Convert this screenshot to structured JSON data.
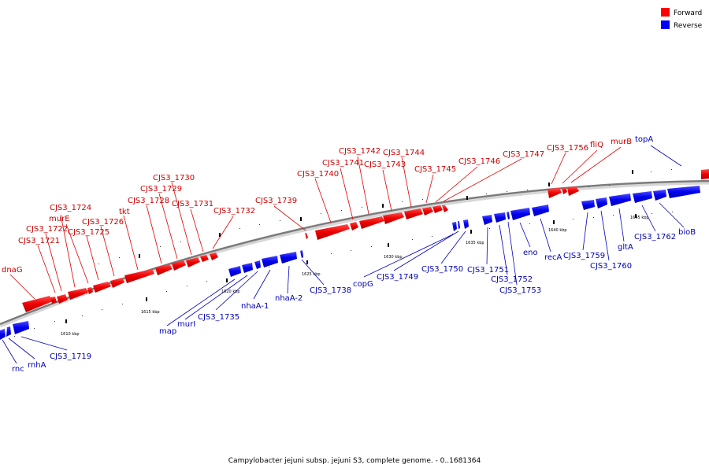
{
  "caption": "Campylobacter jejuni subsp. jejuni S3, complete genome. - 0..1681364",
  "legend": [
    {
      "label": "Forward",
      "color": "#ff0000"
    },
    {
      "label": "Reverse",
      "color": "#0000ff"
    }
  ],
  "colors": {
    "forward": "#ff0000",
    "reverse": "#0000ff",
    "forward_label": "#cc0000",
    "reverse_label": "#0000b3"
  },
  "scale_labels": [
    "1610 kbp",
    "1615 kbp",
    "1620 kbp",
    "1625 kbp",
    "1630 kbp",
    "1635 kbp",
    "1640 kbp",
    "1645 kbp"
  ],
  "forward_genes": [
    "dnaG",
    "CJS3_1721",
    "CJS3_1722",
    "CJS3_1724",
    "murE",
    "CJS3_1725",
    "CJS3_1726",
    "tkt",
    "CJS3_1728",
    "CJS3_1729",
    "CJS3_1730",
    "CJS3_1731",
    "CJS3_1732",
    "CJS3_1739",
    "CJS3_1740",
    "CJS3_1741",
    "CJS3_1742",
    "CJS3_1743",
    "CJS3_1744",
    "CJS3_1745",
    "CJS3_1746",
    "CJS3_1747",
    "CJS3_1756",
    "fliQ",
    "murB"
  ],
  "reverse_genes": [
    "rnc",
    "rnhA",
    "CJS3_1719",
    "map",
    "murI",
    "CJS3_1735",
    "nhaA-1",
    "nhaA-2",
    "CJS3_1738",
    "copG",
    "CJS3_1749",
    "CJS3_1750",
    "CJS3_1751",
    "CJS3_1752",
    "CJS3_1753",
    "eno",
    "recA",
    "CJS3_1759",
    "CJS3_1760",
    "gltA",
    "CJS3_1762",
    "bioB",
    "topA"
  ]
}
